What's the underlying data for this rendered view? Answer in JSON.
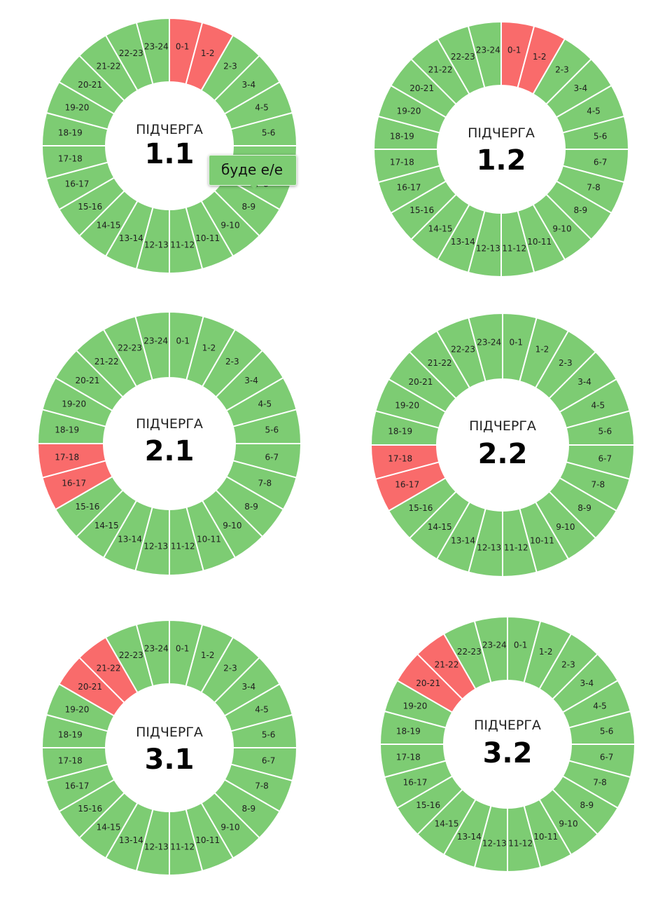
{
  "colors": {
    "on": "#7dcc73",
    "off": "#f96b6b"
  },
  "hour_labels": [
    "0-1",
    "1-2",
    "2-3",
    "3-4",
    "4-5",
    "5-6",
    "6-7",
    "7-8",
    "8-9",
    "9-10",
    "10-11",
    "11-12",
    "12-13",
    "13-14",
    "14-15",
    "15-16",
    "16-17",
    "17-18",
    "18-19",
    "19-20",
    "20-21",
    "21-22",
    "22-23",
    "23-24"
  ],
  "chart_data": [
    {
      "type": "pie",
      "subtitle": "ПІДЧЕРГА",
      "title": "1.1",
      "outage_hours": [
        "0-1",
        "1-2"
      ]
    },
    {
      "type": "pie",
      "subtitle": "ПІДЧЕРГА",
      "title": "1.2",
      "outage_hours": [
        "0-1",
        "1-2"
      ]
    },
    {
      "type": "pie",
      "subtitle": "ПІДЧЕРГА",
      "title": "2.1",
      "outage_hours": [
        "16-17",
        "17-18"
      ]
    },
    {
      "type": "pie",
      "subtitle": "ПІДЧЕРГА",
      "title": "2.2",
      "outage_hours": [
        "16-17",
        "17-18"
      ]
    },
    {
      "type": "pie",
      "subtitle": "ПІДЧЕРГА",
      "title": "3.1",
      "outage_hours": [
        "20-21",
        "21-22"
      ]
    },
    {
      "type": "pie",
      "subtitle": "ПІДЧЕРГА",
      "title": "3.2",
      "outage_hours": [
        "20-21",
        "21-22"
      ]
    }
  ],
  "tooltip": {
    "text": "буде е/е",
    "hour": "7-8"
  }
}
